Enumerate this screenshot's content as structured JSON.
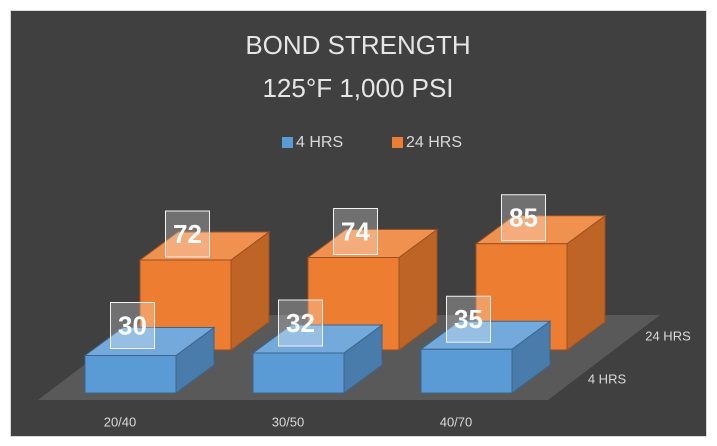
{
  "chart_data": {
    "type": "bar3d",
    "title": [
      "BOND STRENGTH",
      "125°F 1,000 PSI"
    ],
    "categories": [
      "20/40",
      "30/50",
      "40/70"
    ],
    "series": [
      {
        "name": "4 HRS",
        "color": "#5b9bd5",
        "values": [
          30,
          32,
          35
        ]
      },
      {
        "name": "24 HRS",
        "color": "#ed7d31",
        "values": [
          72,
          74,
          85
        ]
      }
    ],
    "legend": "top"
  }
}
